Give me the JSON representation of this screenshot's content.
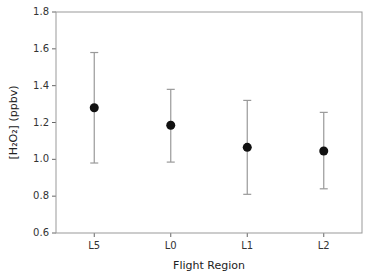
{
  "chart_data": {
    "type": "scatter",
    "xlabel": "Flight Region",
    "ylabel": "[H₂O₂] (ppbv)",
    "categories": [
      "L5",
      "L0",
      "L1",
      "L2"
    ],
    "values": [
      1.28,
      1.185,
      1.065,
      1.045
    ],
    "upper": [
      1.58,
      1.38,
      1.32,
      1.255
    ],
    "lower": [
      0.98,
      0.985,
      0.81,
      0.84
    ],
    "color": "#111111",
    "marker": "circle",
    "ylim": [
      0.6,
      1.8
    ],
    "yticks": [
      0.6,
      0.8,
      {
        "value": 1,
        "label": "1.0"
      },
      1.2,
      1.4,
      1.6,
      1.8
    ],
    "grid": false
  }
}
